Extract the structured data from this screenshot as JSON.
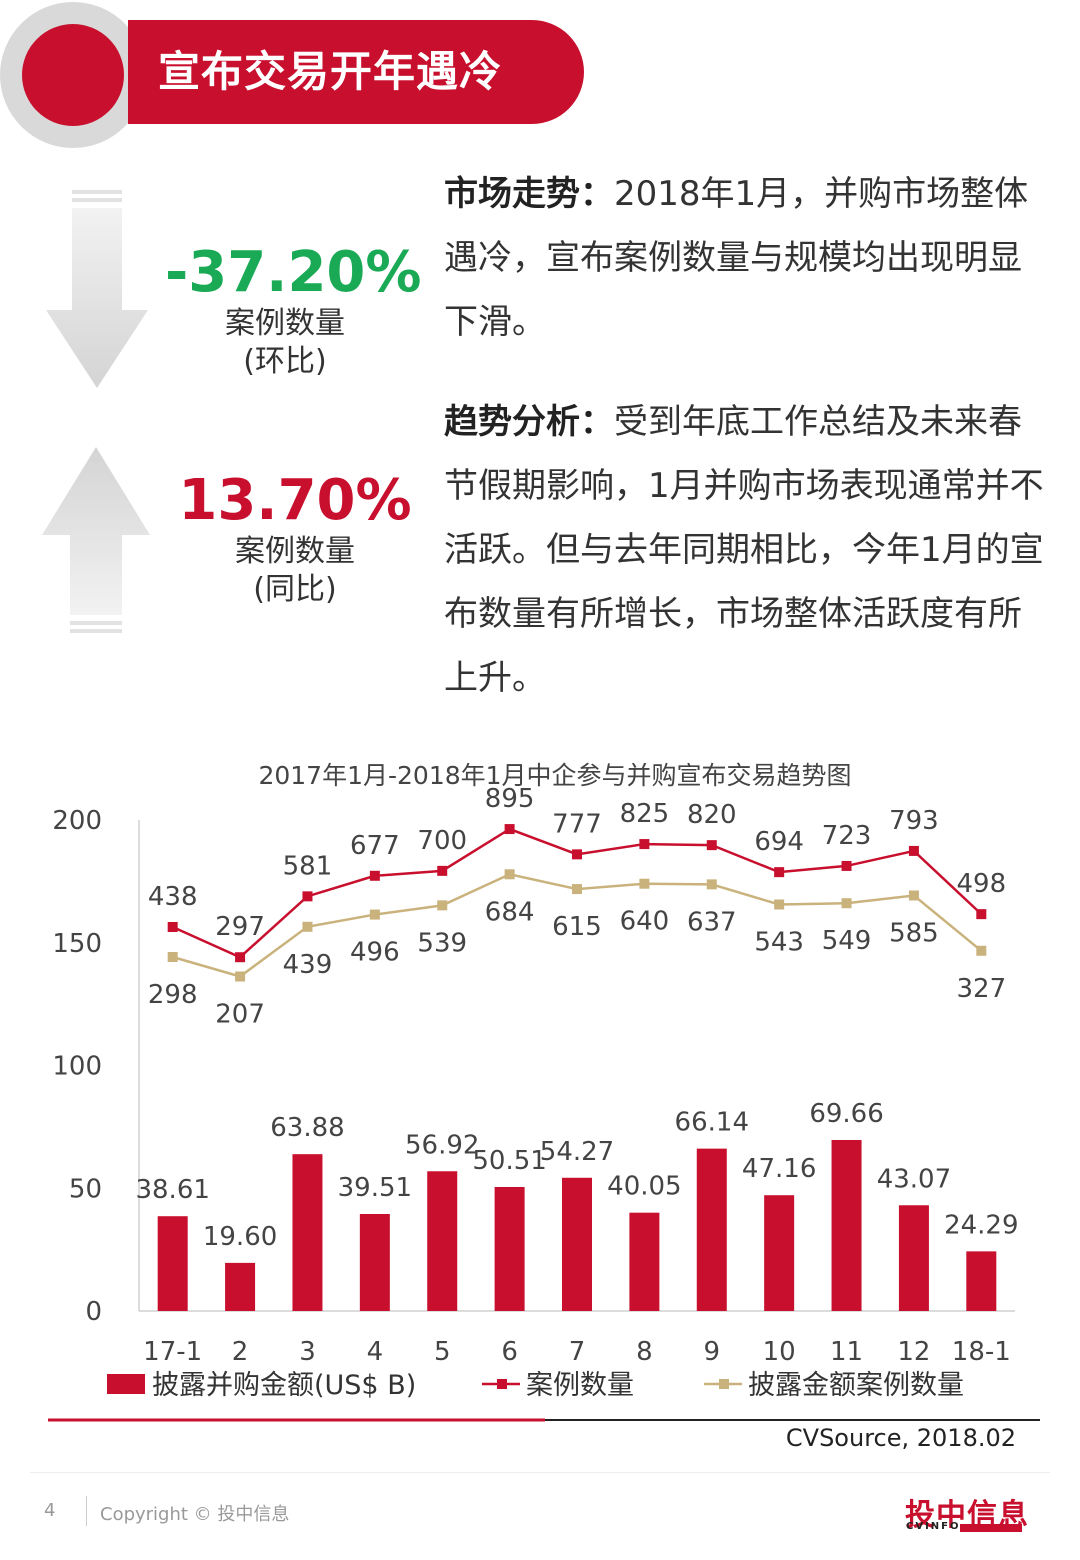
{
  "header": {
    "title": "宣布交易开年遇冷"
  },
  "stats": {
    "mom": {
      "value": "-37.20%",
      "label": "案例数量",
      "sub": "(环比)",
      "color": "#1aaa55"
    },
    "yoy": {
      "value": "13.70%",
      "label": "案例数量",
      "sub": "(同比)",
      "color": "#c8102e"
    }
  },
  "text": {
    "trend_head": "市场走势：",
    "trend_body": "2018年1月，并购市场整体遇冷，宣布案例数量与规模均出现明显下滑。",
    "analysis_head": "趋势分析：",
    "analysis_body": "受到年底工作总结及未来春节假期影响，1月并购市场表现通常并不活跃。但与去年同期相比，今年1月的宣布数量有所增长，市场整体活跃度有所上升。"
  },
  "chart_data": {
    "type": "bar",
    "title": "2017年1月-2018年1月中企参与并购宣布交易趋势图",
    "categories": [
      "17-1",
      "2",
      "3",
      "4",
      "5",
      "6",
      "7",
      "8",
      "9",
      "10",
      "11",
      "12",
      "18-1"
    ],
    "y_ticks": [
      "200",
      "150",
      "100",
      "50",
      "0"
    ],
    "ylim": [
      0,
      200
    ],
    "series": [
      {
        "name": "披露并购金额(US$ B)",
        "kind": "bar",
        "color": "#c8102e",
        "values": [
          38.61,
          19.6,
          63.88,
          39.51,
          56.92,
          50.51,
          54.27,
          40.05,
          66.14,
          47.16,
          69.66,
          43.07,
          24.29
        ],
        "labels": [
          "38.61",
          "19.60",
          "63.88",
          "39.51",
          "56.92",
          "50.51",
          "54.27",
          "40.05",
          "66.14",
          "47.16",
          "69.66",
          "43.07",
          "24.29"
        ]
      },
      {
        "name": "案例数量",
        "kind": "line",
        "color": "#c8102e",
        "values": [
          438,
          297,
          581,
          677,
          700,
          895,
          777,
          825,
          820,
          694,
          723,
          793,
          498
        ],
        "labels": [
          "438",
          "297",
          "581",
          "677",
          "700",
          "895",
          "777",
          "825",
          "820",
          "694",
          "723",
          "793",
          "498"
        ]
      },
      {
        "name": "披露金额案例数量",
        "kind": "line",
        "color": "#c9b27c",
        "values": [
          298,
          207,
          439,
          496,
          539,
          684,
          615,
          640,
          637,
          543,
          549,
          585,
          327
        ],
        "labels": [
          "298",
          "207",
          "439",
          "496",
          "539",
          "684",
          "615",
          "640",
          "637",
          "543",
          "549",
          "585",
          "327"
        ]
      }
    ],
    "legend": "bottom",
    "grid": false
  },
  "source": "CVSource, 2018.02",
  "footer": {
    "page": "4",
    "copyright": "Copyright © 投中信息",
    "logo": "投中信息",
    "logo_sub": "CVINFO"
  }
}
